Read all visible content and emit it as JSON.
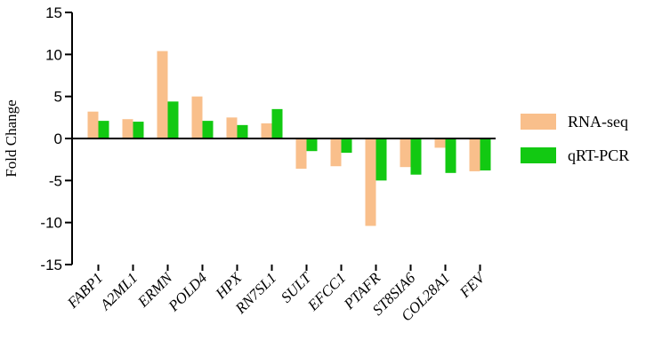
{
  "colors": {
    "rna_seq": "#f9bf8b",
    "qrt_pcr": "#12c912",
    "axis": "#000000"
  },
  "chart_data": {
    "type": "bar",
    "ylabel": "Fold Change",
    "xlabel": "",
    "ylim": [
      -15,
      15
    ],
    "yticks": [
      15,
      10,
      5,
      0,
      -5,
      -10,
      -15
    ],
    "grid": false,
    "legend_position": "right",
    "categories": [
      "FABP1",
      "A2ML1",
      "ERMN",
      "POLD4",
      "HPX",
      "RN7SL1",
      "SULT",
      "EFCC1",
      "PTAFR",
      "ST8SIA6",
      "COL28A1",
      "FEV"
    ],
    "series": [
      {
        "name": "RNA-seq",
        "values": [
          3.2,
          2.3,
          10.4,
          5.0,
          2.5,
          1.8,
          -3.6,
          -3.3,
          -10.4,
          -3.4,
          -1.1,
          -3.9
        ]
      },
      {
        "name": "qRT-PCR",
        "values": [
          2.1,
          2.0,
          4.4,
          2.1,
          1.6,
          3.5,
          -1.5,
          -1.7,
          -5.0,
          -4.3,
          -4.1,
          -3.8
        ]
      }
    ]
  }
}
